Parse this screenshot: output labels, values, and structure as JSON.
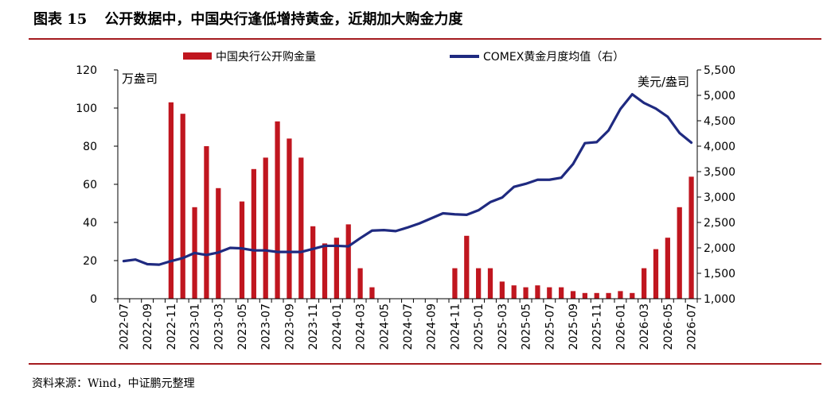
{
  "figure": {
    "label": "图表 15",
    "title": "公开数据中，中国央行逢低增持黄金，近期加大购金力度",
    "source": "资料来源：Wind，中证鹏元整理"
  },
  "chart_data": {
    "type": "bar",
    "categories": [
      "2022-07",
      "2022-08",
      "2022-09",
      "2022-10",
      "2022-11",
      "2022-12",
      "2023-01",
      "2023-02",
      "2023-03",
      "2023-04",
      "2023-05",
      "2023-06",
      "2023-07",
      "2023-08",
      "2023-09",
      "2023-10",
      "2023-11",
      "2023-12",
      "2024-01",
      "2024-02",
      "2024-03",
      "2024-04",
      "2024-05",
      "2024-06",
      "2024-07",
      "2024-08",
      "2024-09",
      "2024-10",
      "2024-11",
      "2024-12",
      "2025-01",
      "2025-02",
      "2025-03",
      "2025-04",
      "2025-05",
      "2025-06",
      "2025-07",
      "2025-08",
      "2025-09",
      "2025-10",
      "2025-11",
      "2025-12",
      "2026-01",
      "2026-02",
      "2026-03",
      "2026-04",
      "2026-05",
      "2026-06",
      "2026-07"
    ],
    "x_tick_labels": [
      "2022-07",
      "2022-09",
      "2022-11",
      "2023-01",
      "2023-03",
      "2023-05",
      "2023-07",
      "2023-09",
      "2023-11",
      "2024-01",
      "2024-03",
      "2024-05",
      "2024-07",
      "2024-09",
      "2024-11",
      "2025-01",
      "2025-03",
      "2025-05",
      "2025-07",
      "2025-09",
      "2025-11",
      "2026-01",
      "2026-03",
      "2026-05",
      "2026-07"
    ],
    "series": [
      {
        "name": "中国央行公开购金量",
        "type": "bar",
        "axis": "left",
        "color": "#c0161f",
        "values": [
          0,
          0,
          0,
          0,
          103,
          97,
          48,
          80,
          58,
          0,
          51,
          68,
          74,
          93,
          84,
          74,
          38,
          29,
          32,
          39,
          16,
          6,
          0,
          0,
          0,
          0,
          0,
          0,
          16,
          33,
          16,
          16,
          9,
          7,
          6,
          7,
          6,
          6,
          4,
          3,
          3,
          3,
          4,
          3,
          16,
          26,
          32,
          48,
          64
        ]
      },
      {
        "name": "COMEX黄金月度均值（右）",
        "type": "line",
        "axis": "right",
        "color": "#1f2a80",
        "values": [
          1740,
          1770,
          1680,
          1670,
          1740,
          1800,
          1900,
          1860,
          1910,
          2000,
          1990,
          1950,
          1950,
          1920,
          1920,
          1920,
          1980,
          2040,
          2040,
          2030,
          2190,
          2340,
          2350,
          2330,
          2400,
          2480,
          2580,
          2680,
          2660,
          2650,
          2740,
          2900,
          2990,
          3200,
          3260,
          3340,
          3340,
          3380,
          3650,
          4060,
          4080,
          4310,
          4730,
          5020,
          4850,
          4740,
          4580,
          4260,
          4070
        ]
      }
    ],
    "y_left": {
      "label": "万盎司",
      "ylim": [
        0,
        120
      ],
      "ticks": [
        "0",
        "20",
        "40",
        "60",
        "80",
        "100",
        "120"
      ]
    },
    "y_right": {
      "label": "美元/盎司",
      "ylim": [
        1000,
        5500
      ],
      "ticks": [
        "1,000",
        "1,500",
        "2,000",
        "2,500",
        "3,000",
        "3,500",
        "4,000",
        "4,500",
        "5,000",
        "5,500"
      ]
    },
    "legend_position": "top",
    "grid": false
  }
}
